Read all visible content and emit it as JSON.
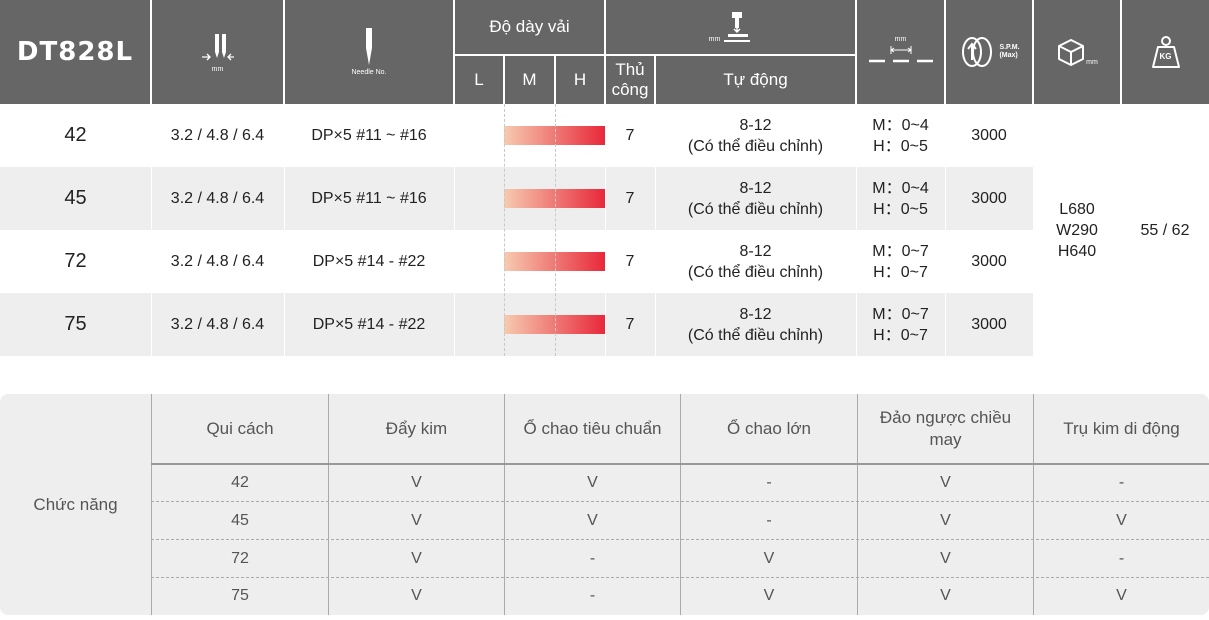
{
  "spec": {
    "header": {
      "model": "DT828L",
      "stitch_icon_unit": "mm",
      "needle_icon_label": "Needle No.",
      "thickness_title": "Độ dày vải",
      "thickness_cols": [
        "L",
        "M",
        "H"
      ],
      "lift_icon_unit": "mm",
      "lift_cols": [
        "Thủ công",
        "Tự động"
      ],
      "feed_icon_unit": "mm",
      "spm_label": "S.P.M.",
      "spm_sub": "(Max)",
      "dim_icon_unit": "mm",
      "weight_icon_label": "KG"
    },
    "rows": [
      {
        "model": "42",
        "stitch": "3.2 / 4.8 / 6.4",
        "needle": "DP×5  #11 ~ #16",
        "thickness_level": 1.0,
        "manual": "7",
        "auto1": "8-12",
        "auto2": "(Có thể điều chỉnh)",
        "feed1": "M：0~4",
        "feed2": "H：0~5",
        "spm": "3000"
      },
      {
        "model": "45",
        "stitch": "3.2 / 4.8 / 6.4",
        "needle": "DP×5  #11 ~ #16",
        "thickness_level": 1.0,
        "manual": "7",
        "auto1": "8-12",
        "auto2": "(Có thể điều chỉnh)",
        "feed1": "M：0~4",
        "feed2": "H：0~5",
        "spm": "3000"
      },
      {
        "model": "72",
        "stitch": "3.2 / 4.8 / 6.4",
        "needle": "DP×5  #14 - #22",
        "thickness_level": 1.0,
        "manual": "7",
        "auto1": "8-12",
        "auto2": "(Có thể điều chỉnh)",
        "feed1": "M：0~7",
        "feed2": "H：0~7",
        "spm": "3000"
      },
      {
        "model": "75",
        "stitch": "3.2 / 4.8 / 6.4",
        "needle": "DP×5  #14 - #22",
        "thickness_level": 1.0,
        "manual": "7",
        "auto1": "8-12",
        "auto2": "(Có thể điều chỉnh)",
        "feed1": "M：0~7",
        "feed2": "H：0~7",
        "spm": "3000"
      }
    ],
    "dimensions": {
      "l": "L680",
      "w": "W290",
      "h": "H640"
    },
    "weight": "55 / 62"
  },
  "functions": {
    "title": "Chức năng",
    "headers": [
      "Qui cách",
      "Đẩy kim",
      "Ổ chao tiêu chuẩn",
      "Ổ chao lớn",
      "Đảo ngược chiều may",
      "Trụ kim di động"
    ],
    "rows": [
      [
        "42",
        "V",
        "V",
        "-",
        "V",
        "-"
      ],
      [
        "45",
        "V",
        "V",
        "-",
        "V",
        "V"
      ],
      [
        "72",
        "V",
        "-",
        "V",
        "V",
        "-"
      ],
      [
        "75",
        "V",
        "-",
        "V",
        "V",
        "V"
      ]
    ]
  }
}
